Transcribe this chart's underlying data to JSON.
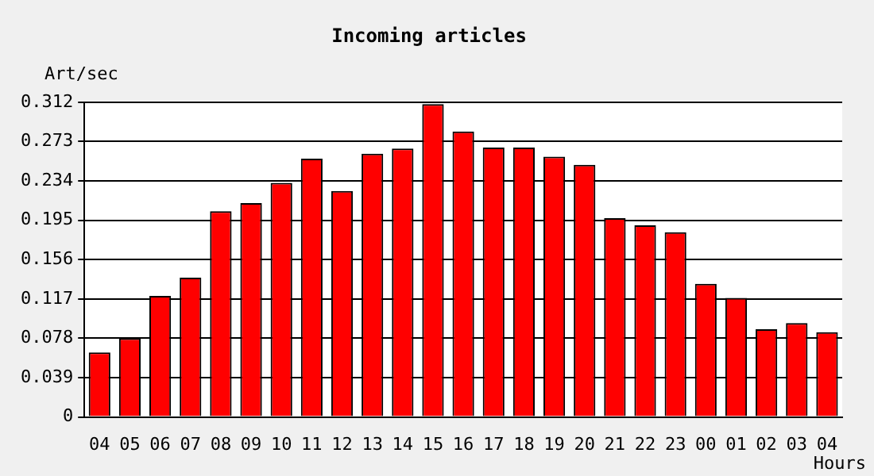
{
  "chart_data": {
    "type": "bar",
    "title": "Incoming articles",
    "ylabel": "Art/sec",
    "xlabel": "Hours",
    "categories": [
      "04",
      "05",
      "06",
      "07",
      "08",
      "09",
      "10",
      "11",
      "12",
      "13",
      "14",
      "15",
      "16",
      "17",
      "18",
      "19",
      "20",
      "21",
      "22",
      "23",
      "00",
      "01",
      "02",
      "03",
      "04"
    ],
    "values": [
      0.064,
      0.078,
      0.12,
      0.138,
      0.204,
      0.212,
      0.232,
      0.256,
      0.224,
      0.261,
      0.266,
      0.31,
      0.283,
      0.267,
      0.267,
      0.258,
      0.25,
      0.197,
      0.19,
      0.183,
      0.132,
      0.118,
      0.087,
      0.093,
      0.084
    ],
    "color": "#ff0000",
    "ylim": [
      0,
      0.312
    ],
    "yticks": [
      0,
      0.039,
      0.078,
      0.117,
      0.156,
      0.195,
      0.234,
      0.273,
      0.312
    ],
    "grid": "y",
    "legend": false
  }
}
